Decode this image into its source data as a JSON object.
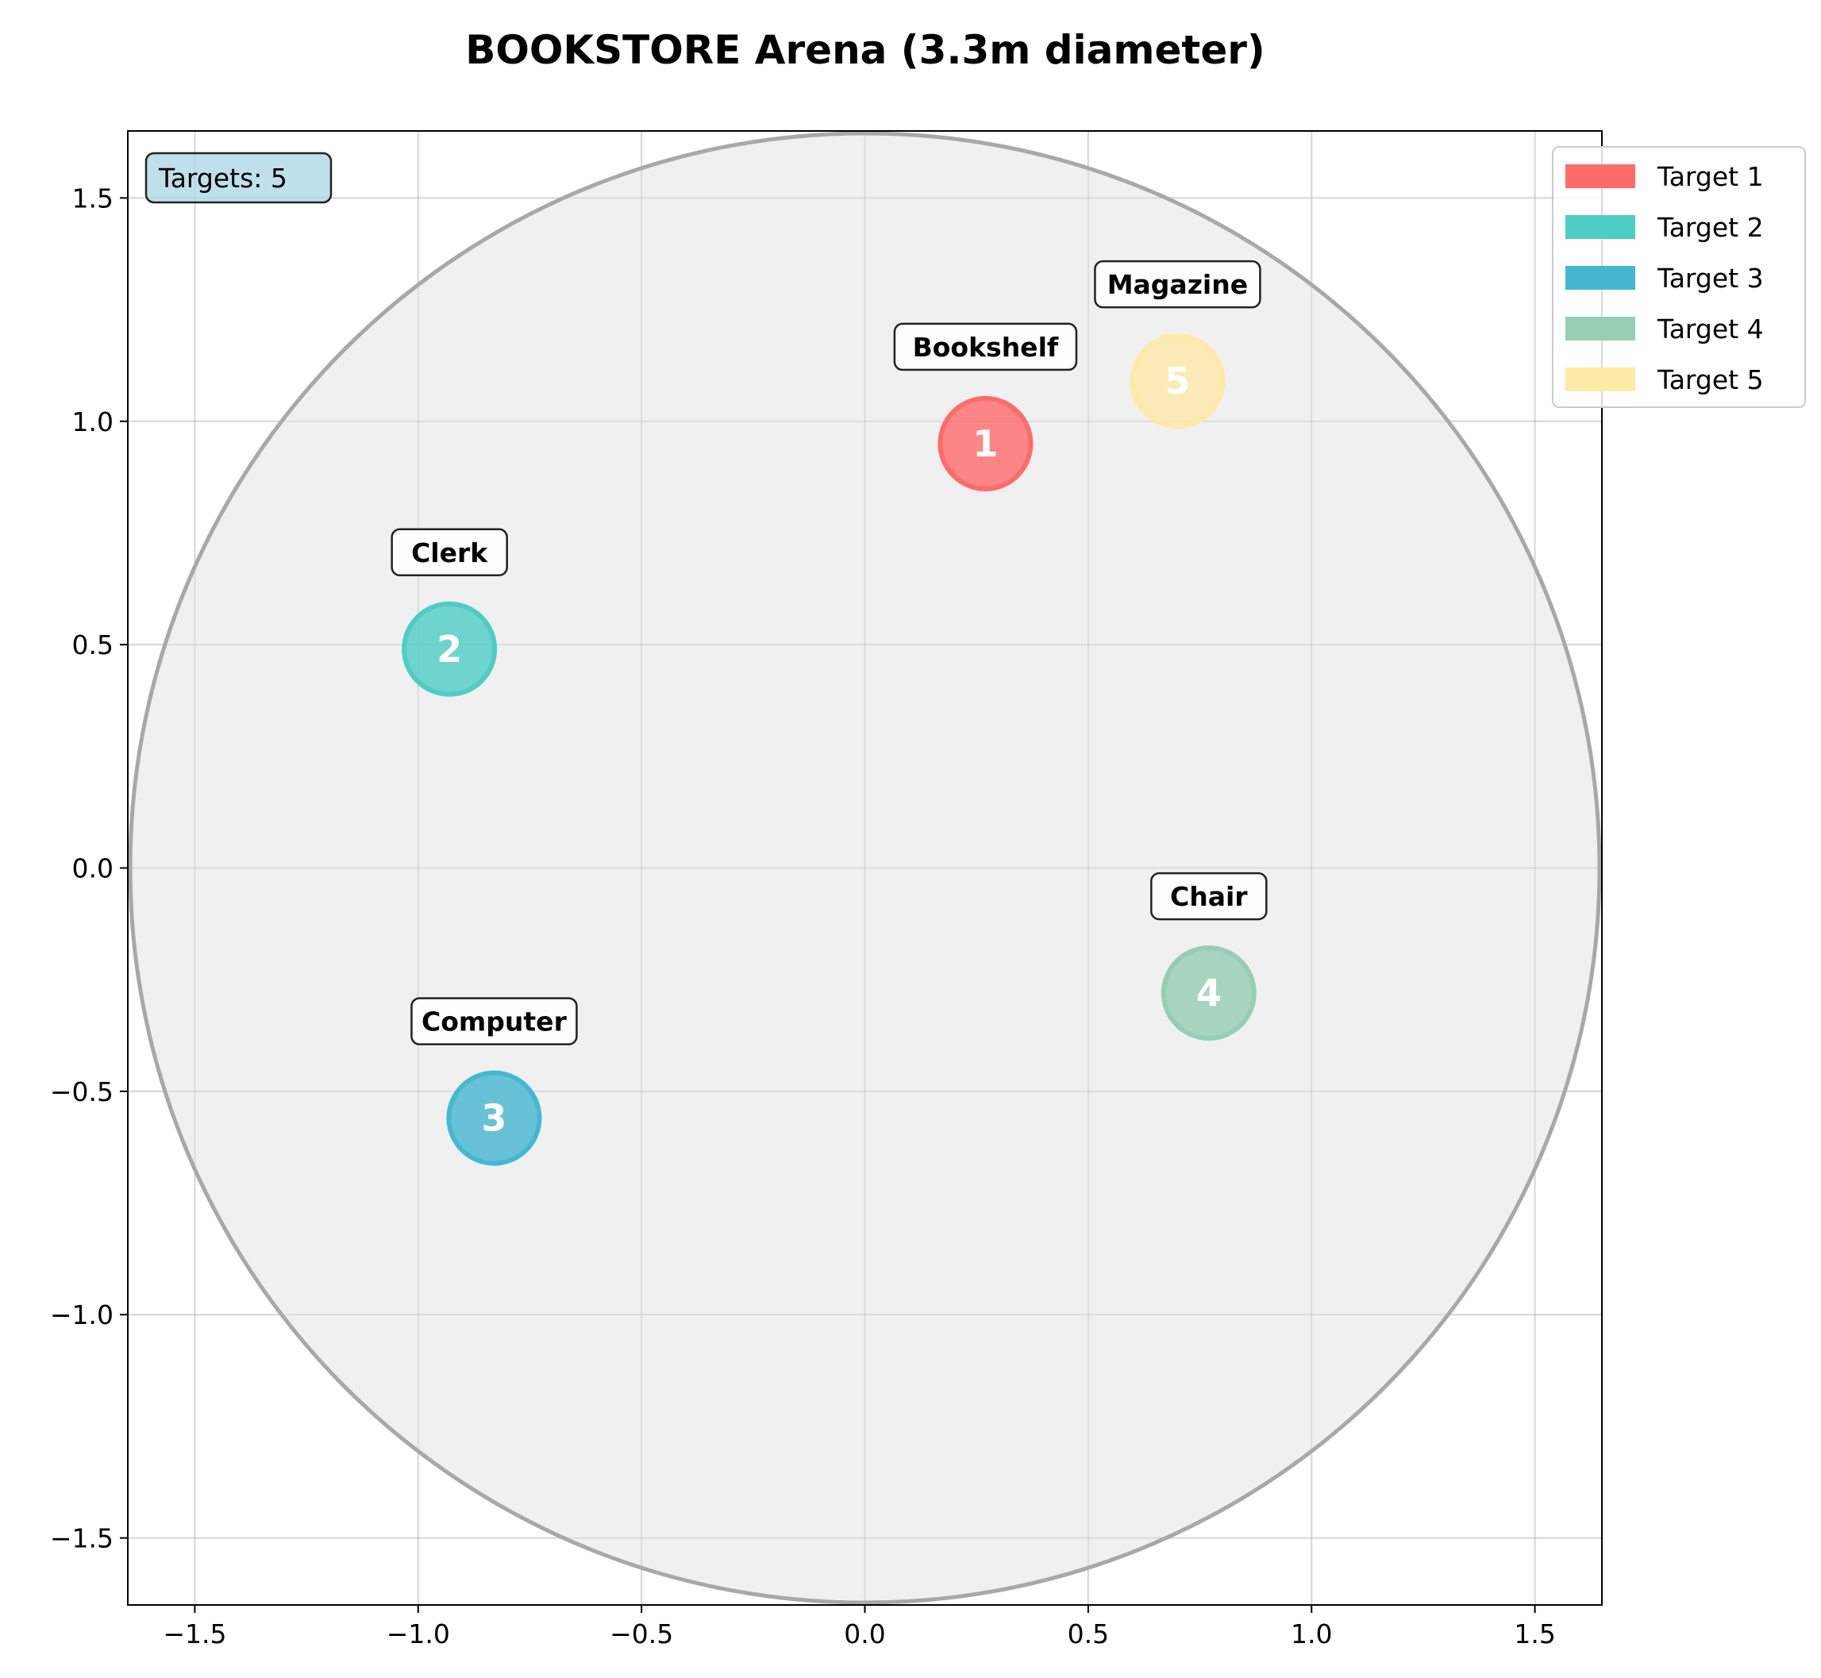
{
  "chart_data": {
    "type": "scatter",
    "title": "BOOKSTORE Arena (3.3m diameter)",
    "xlabel": "",
    "ylabel": "",
    "xlim": [
      -1.65,
      1.65
    ],
    "ylim": [
      -1.65,
      1.65
    ],
    "grid": true,
    "legend_position": "upper right, outside plot",
    "arena": {
      "center": [
        0,
        0
      ],
      "radius": 1.65,
      "fill": "#f0f0f0",
      "edge": "#a8a8a8"
    },
    "x_ticks": [
      {
        "value": -1.5,
        "label": "−1.5"
      },
      {
        "value": -1.0,
        "label": "−1.0"
      },
      {
        "value": -0.5,
        "label": "−0.5"
      },
      {
        "value": 0.0,
        "label": "0.0"
      },
      {
        "value": 0.5,
        "label": "0.5"
      },
      {
        "value": 1.0,
        "label": "1.0"
      },
      {
        "value": 1.5,
        "label": "1.5"
      }
    ],
    "y_ticks": [
      {
        "value": 1.5,
        "label": "1.5"
      },
      {
        "value": 1.0,
        "label": "1.0"
      },
      {
        "value": 0.5,
        "label": "0.5"
      },
      {
        "value": 0.0,
        "label": "0.0"
      },
      {
        "value": -0.5,
        "label": "−0.5"
      },
      {
        "value": -1.0,
        "label": "−1.0"
      },
      {
        "value": -1.5,
        "label": "−1.5"
      }
    ],
    "info_box": "Targets: 5",
    "targets": [
      {
        "number": "1",
        "name": "Bookshelf",
        "legend": "Target 1",
        "x": 0.27,
        "y": 0.95,
        "color": "#ff6b6b"
      },
      {
        "number": "2",
        "name": "Clerk",
        "legend": "Target 2",
        "x": -0.93,
        "y": 0.49,
        "color": "#4ecdc4"
      },
      {
        "number": "3",
        "name": "Computer",
        "legend": "Target 3",
        "x": -0.83,
        "y": -0.56,
        "color": "#45b7d1"
      },
      {
        "number": "4",
        "name": "Chair",
        "legend": "Target 4",
        "x": 0.77,
        "y": -0.28,
        "color": "#96ceb4"
      },
      {
        "number": "5",
        "name": "Magazine",
        "legend": "Target 5",
        "x": 0.7,
        "y": 1.09,
        "color": "#ffeaa7"
      }
    ]
  }
}
